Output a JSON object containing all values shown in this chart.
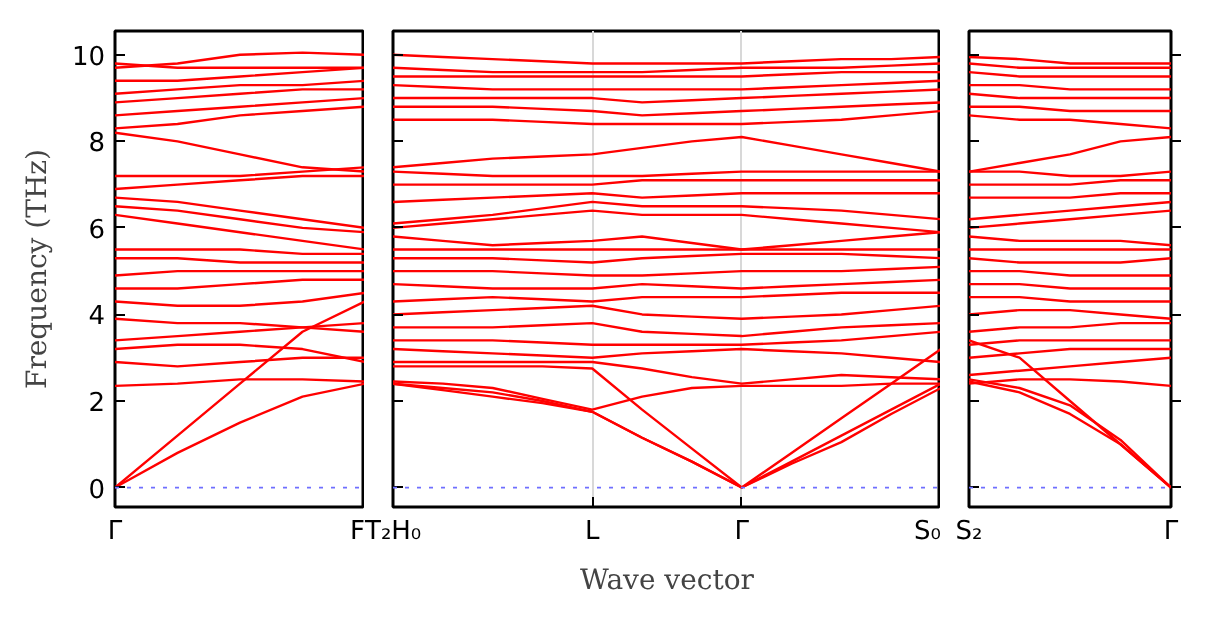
{
  "chart_data": [
    {
      "type": "line",
      "ylabel": "Frequency (THz)",
      "color": "#ff0000",
      "categories": [
        "Γ",
        null,
        null,
        null,
        "F"
      ],
      "ylim": [
        -0.45,
        10.55
      ],
      "yticks": [
        0,
        2,
        4,
        6,
        8,
        10
      ],
      "ref_lines": [
        {
          "axis": "y",
          "value": 0,
          "color": "#6f6fff",
          "line_style": "dotted"
        }
      ],
      "series": [
        {
          "values": [
            0,
            0.8,
            1.5,
            2.1,
            2.4
          ]
        },
        {
          "values": [
            0,
            1.2,
            2.4,
            3.6,
            4.3
          ]
        },
        {
          "values": [
            2.35,
            2.4,
            2.5,
            2.5,
            2.45
          ]
        },
        {
          "values": [
            2.9,
            2.8,
            2.9,
            3.0,
            3.0
          ]
        },
        {
          "values": [
            3.2,
            3.3,
            3.3,
            3.2,
            2.9
          ]
        },
        {
          "values": [
            3.4,
            3.5,
            3.6,
            3.7,
            3.8
          ]
        },
        {
          "values": [
            3.9,
            3.8,
            3.8,
            3.7,
            3.6
          ]
        },
        {
          "values": [
            4.3,
            4.2,
            4.2,
            4.3,
            4.5
          ]
        },
        {
          "values": [
            4.6,
            4.6,
            4.7,
            4.8,
            4.8
          ]
        },
        {
          "values": [
            4.9,
            5.0,
            5.0,
            5.0,
            5.0
          ]
        },
        {
          "values": [
            5.3,
            5.3,
            5.2,
            5.2,
            5.2
          ]
        },
        {
          "values": [
            5.5,
            5.5,
            5.5,
            5.4,
            5.4
          ]
        },
        {
          "values": [
            6.3,
            6.1,
            5.9,
            5.7,
            5.5
          ]
        },
        {
          "values": [
            6.5,
            6.4,
            6.2,
            6.0,
            5.9
          ]
        },
        {
          "values": [
            6.7,
            6.6,
            6.4,
            6.2,
            6.0
          ]
        },
        {
          "values": [
            6.9,
            7.0,
            7.1,
            7.2,
            7.2
          ]
        },
        {
          "values": [
            7.2,
            7.2,
            7.2,
            7.3,
            7.4
          ]
        },
        {
          "values": [
            8.2,
            8.0,
            7.7,
            7.4,
            7.3
          ]
        },
        {
          "values": [
            8.3,
            8.4,
            8.6,
            8.7,
            8.8
          ]
        },
        {
          "values": [
            8.6,
            8.7,
            8.8,
            8.9,
            9.0
          ]
        },
        {
          "values": [
            8.9,
            9.0,
            9.1,
            9.2,
            9.2
          ]
        },
        {
          "values": [
            9.1,
            9.2,
            9.3,
            9.3,
            9.4
          ]
        },
        {
          "values": [
            9.4,
            9.4,
            9.5,
            9.6,
            9.7
          ]
        },
        {
          "values": [
            9.7,
            9.8,
            10.0,
            10.05,
            10.0
          ]
        },
        {
          "values": [
            9.8,
            9.7,
            9.7,
            9.7,
            9.7
          ]
        }
      ]
    },
    {
      "type": "line",
      "xlabel": "Wave vector",
      "color": "#ff0000",
      "categories": [
        "T₂H₀",
        null,
        null,
        null,
        "L",
        null,
        null,
        "Γ",
        null,
        null,
        null,
        "S₀"
      ],
      "ylim": [
        -0.45,
        10.55
      ],
      "yticks": [
        0,
        2,
        4,
        6,
        8,
        10
      ],
      "tick_labels": "x",
      "grid": "x",
      "ref_lines": [
        {
          "axis": "y",
          "value": 0,
          "color": "#6f6fff",
          "line_style": "dotted"
        }
      ],
      "series": [
        {
          "values": [
            2.4,
            2.3,
            2.2,
            2.0,
            1.75,
            1.15,
            0.6,
            0,
            0.6,
            1.2,
            1.8,
            2.4
          ]
        },
        {
          "values": [
            2.4,
            2.25,
            2.1,
            1.95,
            1.75,
            1.15,
            0.6,
            0,
            0.55,
            1.05,
            1.7,
            2.3
          ]
        },
        {
          "values": [
            2.8,
            2.8,
            2.8,
            2.8,
            2.75,
            1.8,
            0.9,
            0,
            0.8,
            1.6,
            2.4,
            3.2
          ]
        },
        {
          "values": [
            2.45,
            2.4,
            2.3,
            2.05,
            1.8,
            2.1,
            2.3,
            2.35,
            2.35,
            2.35,
            2.4,
            2.4
          ]
        },
        {
          "values": [
            2.9,
            2.9,
            2.9,
            2.9,
            2.9,
            2.75,
            2.55,
            2.4,
            2.5,
            2.6,
            2.55,
            2.5
          ]
        },
        {
          "values": [
            3.2,
            3.15,
            3.1,
            3.05,
            3.0,
            3.1,
            3.15,
            3.2,
            3.15,
            3.1,
            3.0,
            2.9
          ]
        },
        {
          "values": [
            3.4,
            3.4,
            3.4,
            3.35,
            3.3,
            3.3,
            3.3,
            3.3,
            3.35,
            3.4,
            3.5,
            3.6
          ]
        },
        {
          "values": [
            3.7,
            3.7,
            3.7,
            3.75,
            3.8,
            3.6,
            3.55,
            3.5,
            3.6,
            3.7,
            3.75,
            3.8
          ]
        },
        {
          "values": [
            4.0,
            4.05,
            4.1,
            4.15,
            4.2,
            4.0,
            3.95,
            3.9,
            3.95,
            4.0,
            4.1,
            4.2
          ]
        },
        {
          "values": [
            4.3,
            4.35,
            4.4,
            4.35,
            4.3,
            4.4,
            4.4,
            4.4,
            4.45,
            4.5,
            4.5,
            4.5
          ]
        },
        {
          "values": [
            4.7,
            4.65,
            4.6,
            4.6,
            4.6,
            4.7,
            4.65,
            4.6,
            4.65,
            4.7,
            4.75,
            4.8
          ]
        },
        {
          "values": [
            5.0,
            5.0,
            5.0,
            4.95,
            4.9,
            4.9,
            4.95,
            5.0,
            5.0,
            5.0,
            5.05,
            5.1
          ]
        },
        {
          "values": [
            5.3,
            5.3,
            5.3,
            5.25,
            5.2,
            5.3,
            5.35,
            5.4,
            5.4,
            5.4,
            5.35,
            5.3
          ]
        },
        {
          "values": [
            5.5,
            5.5,
            5.5,
            5.5,
            5.5,
            5.5,
            5.5,
            5.5,
            5.5,
            5.5,
            5.5,
            5.5
          ]
        },
        {
          "values": [
            5.8,
            5.7,
            5.6,
            5.65,
            5.7,
            5.8,
            5.65,
            5.5,
            5.6,
            5.7,
            5.8,
            5.9
          ]
        },
        {
          "values": [
            6.0,
            6.1,
            6.2,
            6.3,
            6.4,
            6.3,
            6.3,
            6.3,
            6.2,
            6.1,
            6.0,
            5.9
          ]
        },
        {
          "values": [
            6.1,
            6.2,
            6.3,
            6.45,
            6.6,
            6.5,
            6.5,
            6.5,
            6.45,
            6.4,
            6.3,
            6.2
          ]
        },
        {
          "values": [
            6.6,
            6.65,
            6.7,
            6.75,
            6.8,
            6.7,
            6.75,
            6.8,
            6.8,
            6.8,
            6.8,
            6.8
          ]
        },
        {
          "values": [
            7.0,
            7.0,
            7.0,
            7.0,
            7.0,
            7.1,
            7.1,
            7.1,
            7.1,
            7.1,
            7.1,
            7.1
          ]
        },
        {
          "values": [
            7.3,
            7.25,
            7.2,
            7.2,
            7.2,
            7.2,
            7.25,
            7.3,
            7.3,
            7.3,
            7.3,
            7.3
          ]
        },
        {
          "values": [
            7.4,
            7.5,
            7.6,
            7.65,
            7.7,
            7.85,
            8.0,
            8.1,
            7.9,
            7.7,
            7.5,
            7.3
          ]
        },
        {
          "values": [
            8.5,
            8.5,
            8.5,
            8.45,
            8.4,
            8.4,
            8.4,
            8.4,
            8.45,
            8.5,
            8.6,
            8.7
          ]
        },
        {
          "values": [
            8.8,
            8.8,
            8.8,
            8.75,
            8.7,
            8.6,
            8.65,
            8.7,
            8.75,
            8.8,
            8.85,
            8.9
          ]
        },
        {
          "values": [
            9.0,
            9.0,
            9.0,
            9.0,
            9.0,
            8.9,
            8.95,
            9.0,
            9.05,
            9.1,
            9.15,
            9.2
          ]
        },
        {
          "values": [
            9.3,
            9.25,
            9.2,
            9.2,
            9.2,
            9.2,
            9.2,
            9.2,
            9.25,
            9.3,
            9.35,
            9.4
          ]
        },
        {
          "values": [
            9.5,
            9.5,
            9.5,
            9.5,
            9.5,
            9.5,
            9.5,
            9.5,
            9.55,
            9.6,
            9.6,
            9.6
          ]
        },
        {
          "values": [
            9.7,
            9.65,
            9.6,
            9.6,
            9.6,
            9.6,
            9.65,
            9.7,
            9.7,
            9.7,
            9.75,
            9.8
          ]
        },
        {
          "values": [
            10.0,
            9.95,
            9.9,
            9.85,
            9.8,
            9.8,
            9.8,
            9.8,
            9.85,
            9.9,
            9.9,
            9.95
          ]
        }
      ]
    },
    {
      "type": "line",
      "color": "#ff0000",
      "categories": [
        "S₂",
        null,
        null,
        null,
        "Γ"
      ],
      "ylim": [
        -0.45,
        10.55
      ],
      "yticks": [
        0,
        2,
        4,
        6,
        8,
        10
      ],
      "tick_labels": "x",
      "ref_lines": [
        {
          "axis": "y",
          "value": 0,
          "color": "#6f6fff",
          "line_style": "dotted"
        }
      ],
      "series": [
        {
          "values": [
            2.45,
            2.2,
            1.7,
            1.0,
            0
          ]
        },
        {
          "values": [
            2.5,
            2.3,
            1.9,
            1.1,
            0
          ]
        },
        {
          "values": [
            3.4,
            3.0,
            2.0,
            1.0,
            0
          ]
        },
        {
          "values": [
            2.4,
            2.5,
            2.5,
            2.45,
            2.35
          ]
        },
        {
          "values": [
            2.6,
            2.7,
            2.8,
            2.9,
            3.0
          ]
        },
        {
          "values": [
            3.0,
            3.1,
            3.2,
            3.2,
            3.2
          ]
        },
        {
          "values": [
            3.3,
            3.4,
            3.4,
            3.4,
            3.4
          ]
        },
        {
          "values": [
            3.6,
            3.7,
            3.7,
            3.8,
            3.8
          ]
        },
        {
          "values": [
            4.0,
            4.1,
            4.1,
            4.0,
            3.9
          ]
        },
        {
          "values": [
            4.4,
            4.4,
            4.3,
            4.3,
            4.3
          ]
        },
        {
          "values": [
            4.7,
            4.7,
            4.6,
            4.6,
            4.6
          ]
        },
        {
          "values": [
            5.0,
            5.0,
            4.9,
            4.9,
            4.9
          ]
        },
        {
          "values": [
            5.3,
            5.2,
            5.2,
            5.2,
            5.3
          ]
        },
        {
          "values": [
            5.5,
            5.5,
            5.5,
            5.5,
            5.5
          ]
        },
        {
          "values": [
            5.8,
            5.7,
            5.7,
            5.7,
            5.6
          ]
        },
        {
          "values": [
            6.0,
            6.1,
            6.2,
            6.3,
            6.4
          ]
        },
        {
          "values": [
            6.2,
            6.3,
            6.4,
            6.5,
            6.6
          ]
        },
        {
          "values": [
            6.7,
            6.7,
            6.7,
            6.8,
            6.8
          ]
        },
        {
          "values": [
            7.0,
            7.0,
            7.0,
            7.1,
            7.1
          ]
        },
        {
          "values": [
            7.3,
            7.3,
            7.2,
            7.2,
            7.3
          ]
        },
        {
          "values": [
            7.3,
            7.5,
            7.7,
            8.0,
            8.1
          ]
        },
        {
          "values": [
            8.6,
            8.5,
            8.5,
            8.4,
            8.3
          ]
        },
        {
          "values": [
            8.8,
            8.8,
            8.7,
            8.7,
            8.7
          ]
        },
        {
          "values": [
            9.1,
            9.0,
            9.0,
            9.0,
            9.0
          ]
        },
        {
          "values": [
            9.3,
            9.3,
            9.2,
            9.2,
            9.2
          ]
        },
        {
          "values": [
            9.6,
            9.5,
            9.5,
            9.5,
            9.5
          ]
        },
        {
          "values": [
            9.8,
            9.7,
            9.7,
            9.7,
            9.7
          ]
        },
        {
          "values": [
            9.95,
            9.9,
            9.8,
            9.8,
            9.8
          ]
        }
      ]
    }
  ]
}
